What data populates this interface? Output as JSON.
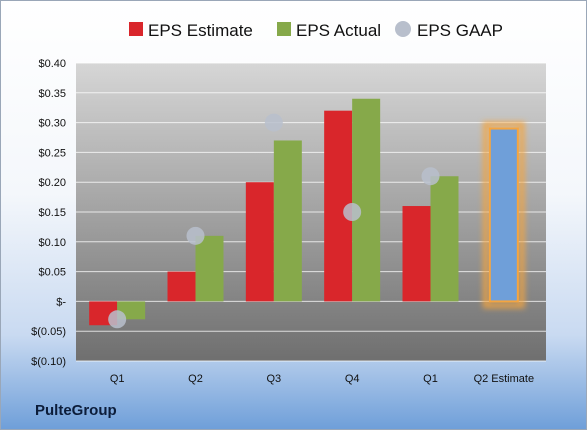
{
  "chart_data": {
    "type": "bar",
    "categories": [
      "Q1",
      "Q2",
      "Q3",
      "Q4",
      "Q1",
      "Q2 Estimate"
    ],
    "series": [
      {
        "name": "EPS Estimate",
        "values": [
          -0.04,
          0.05,
          0.2,
          0.32,
          0.16,
          null
        ]
      },
      {
        "name": "EPS Actual",
        "values": [
          -0.03,
          0.11,
          0.27,
          0.34,
          0.21,
          0.29
        ]
      },
      {
        "name": "EPS GAAP",
        "values": [
          -0.03,
          0.11,
          0.3,
          0.15,
          0.21,
          null
        ]
      }
    ],
    "y_ticks": [
      "$0.40",
      "$0.35",
      "$0.30",
      "$0.25",
      "$0.20",
      "$0.15",
      "$0.10",
      "$0.05",
      "$-",
      "$(0.05)",
      "$(0.10)"
    ],
    "ylim": [
      -0.1,
      0.4
    ],
    "grid": true,
    "legend_placement": "top",
    "highlight_category": "Q2 Estimate",
    "colors": {
      "estimate": "#d9262b",
      "actual": "#86a94a",
      "gaap": "#b8bfcc",
      "estimate_bar": "#6f9fd9",
      "highlight_glow": "#f5a540"
    }
  },
  "company": "PulteGroup"
}
